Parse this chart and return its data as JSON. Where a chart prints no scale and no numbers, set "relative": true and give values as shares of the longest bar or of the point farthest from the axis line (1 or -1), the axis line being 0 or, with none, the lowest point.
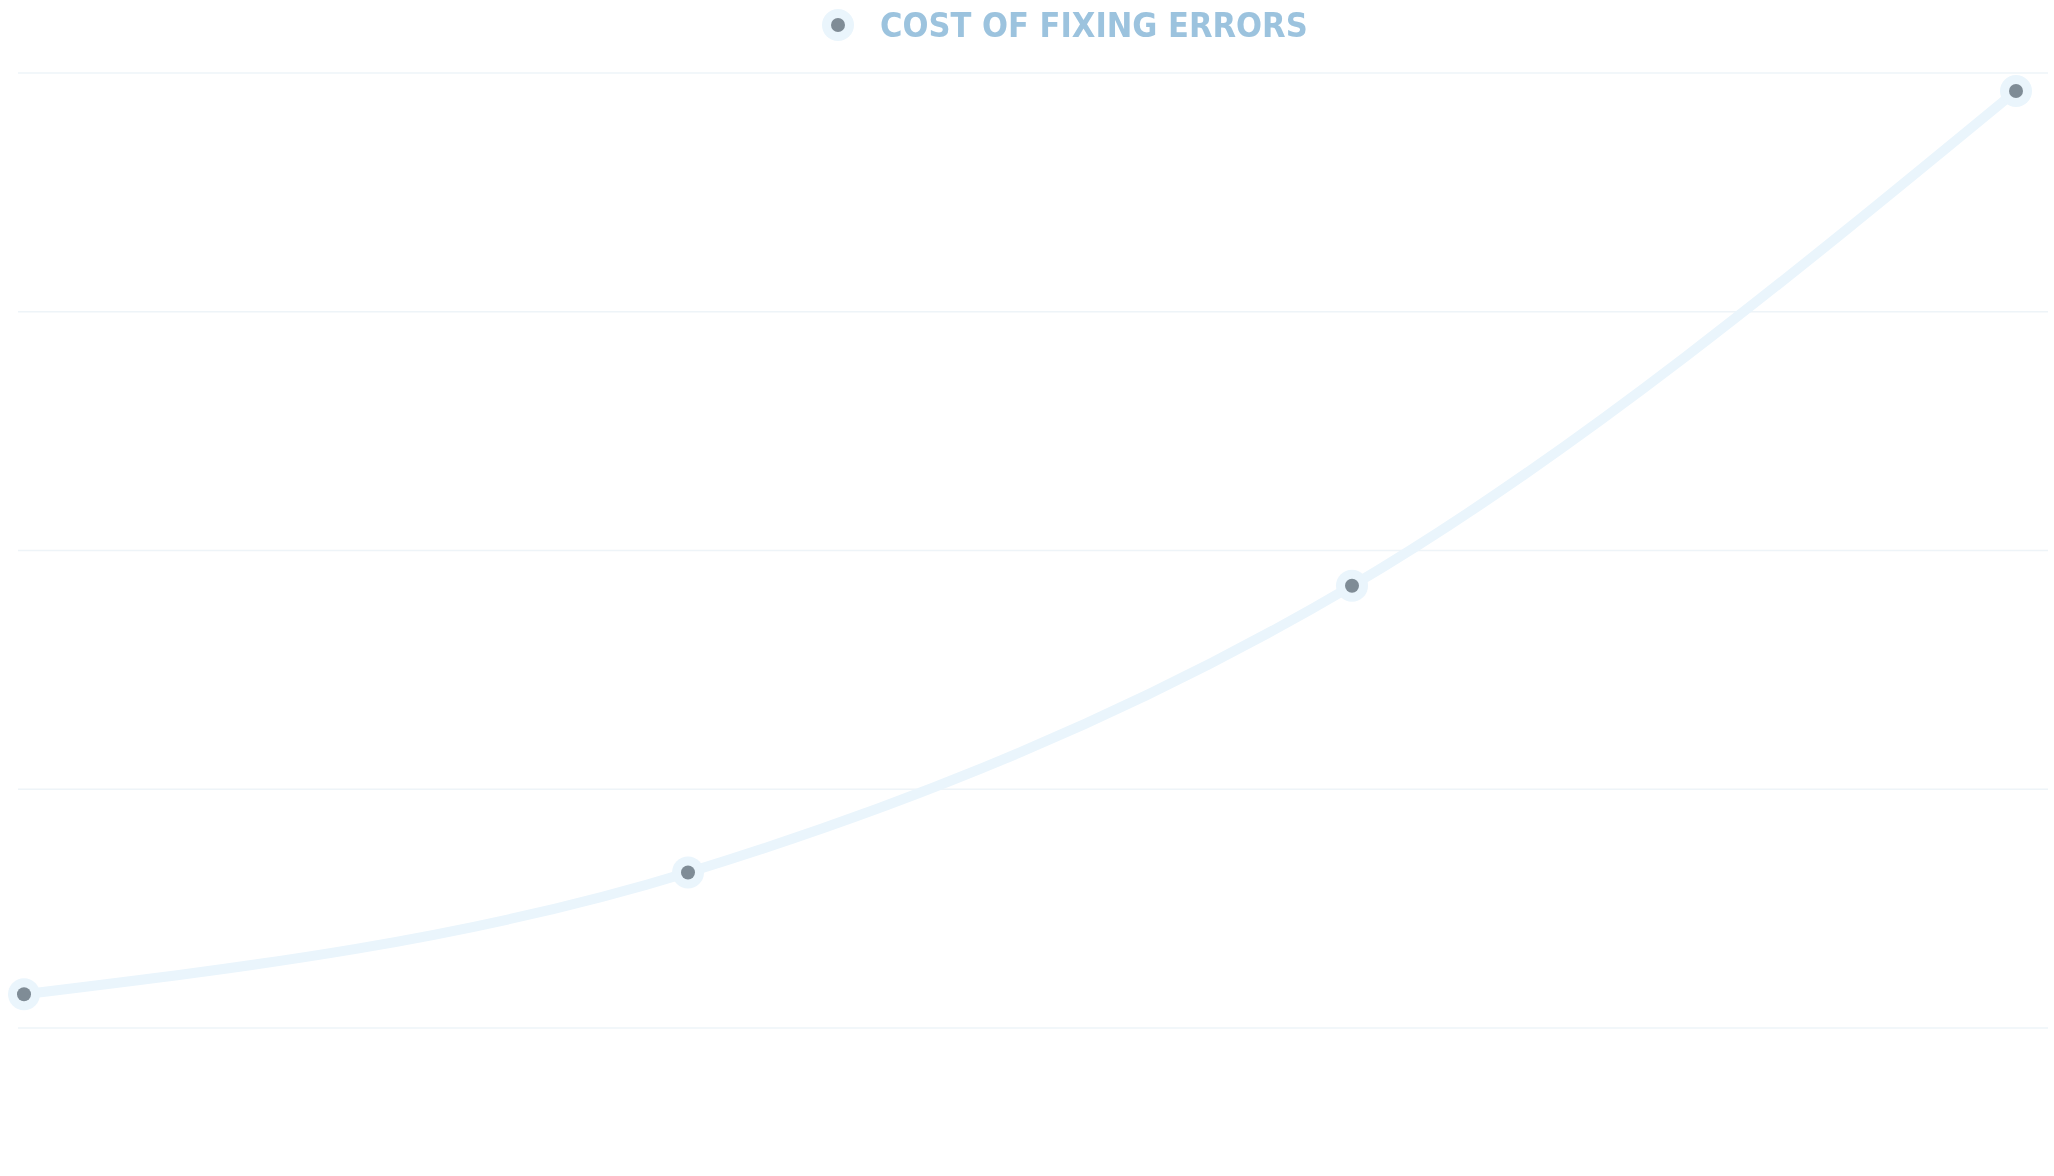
{
  "chart_data": {
    "type": "line",
    "relative": true,
    "categories": [
      null,
      null,
      null,
      null
    ],
    "series": [
      {
        "name": "COST OF FIXING ERRORS",
        "color": "#eaf5fc",
        "values": [
          0.036,
          0.166,
          0.472,
          1
        ]
      }
    ],
    "grid": "y",
    "legend": "top",
    "marker": "circle",
    "line_style": "solid"
  }
}
